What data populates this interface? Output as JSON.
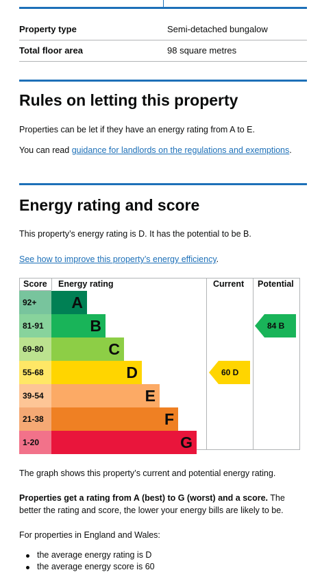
{
  "summary_rows": [
    {
      "key": "Property type",
      "value": "Semi-detached bungalow"
    },
    {
      "key": "Total floor area",
      "value": "98 square metres"
    }
  ],
  "letting": {
    "heading": "Rules on letting this property",
    "para": "Properties can be let if they have an energy rating from A to E.",
    "read_prefix": "You can read ",
    "link": "guidance for landlords on the regulations and exemptions",
    "read_suffix": "."
  },
  "energy": {
    "heading": "Energy rating and score",
    "para": "This property’s energy rating is D. It has the potential to be B.",
    "link": "See how to improve this property’s energy efficiency",
    "link_suffix": "."
  },
  "graph": {
    "headers": {
      "score": "Score",
      "rating": "Energy rating",
      "current": "Current",
      "potential": "Potential"
    },
    "bands": [
      {
        "score": "92+",
        "letter": "A",
        "color": "#008054",
        "score_bg": "#78c49d",
        "letter_color": "#0b0c0c"
      },
      {
        "score": "81-91",
        "letter": "B",
        "color": "#19b459",
        "score_bg": "#88d39c",
        "letter_color": "#0b0c0c"
      },
      {
        "score": "69-80",
        "letter": "C",
        "color": "#8dce46",
        "score_bg": "#bce28f",
        "letter_color": "#0b0c0c"
      },
      {
        "score": "55-68",
        "letter": "D",
        "color": "#ffd500",
        "score_bg": "#ffe766",
        "letter_color": "#0b0c0c"
      },
      {
        "score": "39-54",
        "letter": "E",
        "color": "#fcaa65",
        "score_bg": "#fdc596",
        "letter_color": "#0b0c0c"
      },
      {
        "score": "21-38",
        "letter": "F",
        "color": "#ef8023",
        "score_bg": "#f5a974",
        "letter_color": "#0b0c0c"
      },
      {
        "score": "1-20",
        "letter": "G",
        "color": "#e9153b",
        "score_bg": "#f2728a",
        "letter_color": "#0b0c0c"
      }
    ],
    "current": {
      "label": "60 D",
      "band": "D",
      "color": "#ffd500"
    },
    "potential": {
      "label": "84 B",
      "band": "B",
      "color": "#19b459"
    }
  },
  "caption": "The graph shows this property’s current and potential energy rating.",
  "explain": {
    "bold": "Properties get a rating from A (best) to G (worst) and a score.",
    "rest": " The better the rating and score, the lower your energy bills are likely to be."
  },
  "average": {
    "intro": "For properties in England and Wales:",
    "items": [
      "the average energy rating is D",
      "the average energy score is 60"
    ]
  }
}
